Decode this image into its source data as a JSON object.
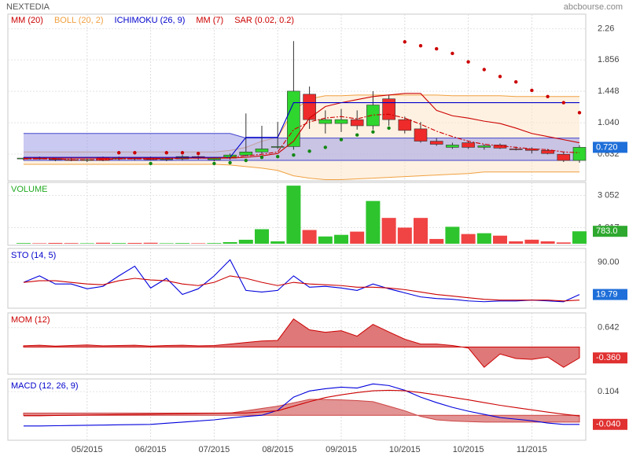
{
  "header": {
    "title": "NEXTEDIA",
    "site": "abcbourse.com"
  },
  "chart_data": [
    {
      "type": "candlestick",
      "categories": [
        null,
        null,
        null,
        null,
        null,
        null,
        null,
        null,
        null,
        null,
        null,
        null,
        null,
        null,
        null,
        null,
        null,
        null,
        null,
        null,
        null,
        null,
        null,
        null,
        null,
        null,
        null,
        null,
        null,
        null,
        null,
        null,
        null,
        null,
        null,
        null
      ],
      "xticks": [
        {
          "value": 4,
          "label": "05/2015"
        },
        {
          "value": 8,
          "label": "06/2015"
        },
        {
          "value": 12,
          "label": "07/2015"
        },
        {
          "value": 16,
          "label": "08/2015"
        },
        {
          "value": 20,
          "label": "09/2015"
        },
        {
          "value": 24,
          "label": "10/2015"
        },
        {
          "value": 28,
          "label": "10/2015"
        },
        {
          "value": 32,
          "label": "11/2015"
        }
      ],
      "open": [
        0.57,
        0.58,
        0.57,
        0.56,
        0.55,
        0.59,
        0.57,
        0.58,
        0.58,
        0.56,
        0.57,
        0.6,
        0.56,
        0.58,
        0.62,
        0.66,
        0.72,
        0.73,
        1.41,
        1.03,
        1.03,
        1.08,
        1.0,
        1.35,
        1.08,
        0.96,
        0.8,
        0.72,
        0.78,
        0.72,
        0.75,
        0.7,
        0.7,
        0.68,
        0.63,
        0.55
      ],
      "high": [
        0.59,
        0.6,
        0.58,
        0.58,
        0.57,
        0.6,
        0.6,
        0.59,
        0.6,
        0.58,
        0.62,
        0.61,
        0.59,
        0.64,
        1.16,
        1.0,
        1.05,
        2.1,
        1.51,
        1.2,
        1.22,
        1.2,
        1.45,
        1.4,
        1.12,
        1.05,
        0.84,
        0.78,
        0.8,
        0.76,
        0.77,
        0.73,
        0.72,
        0.7,
        0.66,
        0.75
      ],
      "low": [
        0.55,
        0.56,
        0.54,
        0.54,
        0.53,
        0.54,
        0.55,
        0.55,
        0.55,
        0.54,
        0.55,
        0.56,
        0.54,
        0.56,
        0.6,
        0.63,
        0.7,
        0.69,
        0.96,
        0.9,
        0.92,
        0.95,
        0.95,
        1.0,
        0.9,
        0.78,
        0.74,
        0.7,
        0.7,
        0.69,
        0.7,
        0.68,
        0.64,
        0.63,
        0.53,
        0.52
      ],
      "close": [
        0.58,
        0.57,
        0.56,
        0.55,
        0.56,
        0.55,
        0.58,
        0.57,
        0.56,
        0.57,
        0.6,
        0.58,
        0.58,
        0.62,
        0.66,
        0.7,
        0.73,
        1.45,
        1.08,
        1.08,
        1.08,
        1.0,
        1.27,
        1.08,
        0.94,
        0.8,
        0.76,
        0.75,
        0.72,
        0.74,
        0.71,
        0.69,
        0.68,
        0.64,
        0.55,
        0.72
      ],
      "up_color": "#2ed62e",
      "down_color": "#ee2a2a",
      "ylim": [
        0.285,
        2.45
      ],
      "yticks": [
        2.26,
        1.856,
        1.448,
        {
          "value": 1.04,
          "label": "1.040"
        },
        0.632
      ],
      "last": {
        "value": 0.72,
        "label": "0.720"
      },
      "last_color": "#1e6fd9",
      "series": [
        {
          "name": "MM (20)",
          "color": "#cc0000",
          "style": "line",
          "values": [
            0.58,
            0.58,
            0.58,
            0.58,
            0.58,
            0.58,
            0.58,
            0.58,
            0.58,
            0.58,
            0.58,
            0.58,
            0.58,
            0.58,
            0.59,
            0.61,
            0.64,
            0.8,
            1.1,
            1.25,
            1.3,
            1.34,
            1.38,
            1.4,
            1.42,
            1.42,
            1.2,
            1.13,
            1.1,
            1.06,
            1.03,
            0.97,
            0.9,
            0.86,
            0.82,
            0.78
          ]
        },
        {
          "name": "BOLL (20, 2)",
          "color": "#f0a040",
          "fill": "#fde6c8",
          "style": "band",
          "upper": [
            0.66,
            0.66,
            0.66,
            0.66,
            0.66,
            0.66,
            0.66,
            0.66,
            0.66,
            0.66,
            0.66,
            0.66,
            0.66,
            0.68,
            0.72,
            0.8,
            0.85,
            1.2,
            1.35,
            1.39,
            1.39,
            1.4,
            1.4,
            1.4,
            1.4,
            1.4,
            1.4,
            1.39,
            1.39,
            1.39,
            1.39,
            1.38,
            1.38,
            1.38,
            1.38,
            1.38
          ],
          "lower": [
            0.5,
            0.5,
            0.5,
            0.5,
            0.5,
            0.5,
            0.5,
            0.5,
            0.5,
            0.5,
            0.5,
            0.5,
            0.5,
            0.49,
            0.47,
            0.45,
            0.42,
            0.35,
            0.32,
            0.3,
            0.3,
            0.31,
            0.32,
            0.33,
            0.34,
            0.35,
            0.36,
            0.37,
            0.38,
            0.4,
            0.4,
            0.4,
            0.4,
            0.4,
            0.4,
            0.4
          ]
        },
        {
          "name": "ICHIMOKU (26, 9)",
          "color": "#0000cc",
          "style": "line",
          "values": [
            0.59,
            0.59,
            0.59,
            0.59,
            0.59,
            0.59,
            0.59,
            0.59,
            0.59,
            0.59,
            0.59,
            0.59,
            0.59,
            0.59,
            0.85,
            0.85,
            0.85,
            1.3,
            1.3,
            1.3,
            1.3,
            1.3,
            1.3,
            1.3,
            1.3,
            1.3,
            1.3,
            1.3,
            1.3,
            1.3,
            1.3,
            1.3,
            1.3,
            1.3,
            1.3,
            1.3
          ]
        },
        {
          "name": "MM (7)",
          "color": "#cc0000",
          "style": "dashed",
          "values": [
            0.57,
            0.57,
            0.57,
            0.56,
            0.56,
            0.56,
            0.57,
            0.57,
            0.57,
            0.57,
            0.58,
            0.58,
            0.58,
            0.59,
            0.61,
            0.63,
            0.66,
            0.95,
            1.05,
            1.1,
            1.12,
            1.09,
            1.14,
            1.15,
            1.1,
            1.02,
            0.93,
            0.86,
            0.8,
            0.76,
            0.74,
            0.72,
            0.7,
            0.69,
            0.66,
            0.65
          ]
        },
        {
          "name": "SAR (0.02, 0.2)",
          "color": "#cc0000",
          "color_below": "#118811",
          "style": "dots",
          "values": [
            null,
            null,
            null,
            null,
            null,
            null,
            0.65,
            0.65,
            0.51,
            0.65,
            0.65,
            0.64,
            0.51,
            0.52,
            0.55,
            0.59,
            0.6,
            0.62,
            0.67,
            0.72,
            0.82,
            0.88,
            0.92,
            0.97,
            2.09,
            2.04,
            2.0,
            1.94,
            1.83,
            1.73,
            1.64,
            1.57,
            1.46,
            1.38,
            1.3,
            1.17
          ]
        },
        {
          "color": "#4444cc",
          "fill": "#9c9ce8",
          "style": "band",
          "upper": [
            0.9,
            0.9,
            0.9,
            0.9,
            0.9,
            0.9,
            0.9,
            0.9,
            0.9,
            0.9,
            0.9,
            0.9,
            0.9,
            0.9,
            0.84,
            0.84,
            0.84,
            0.84,
            0.84,
            0.84,
            0.84,
            0.84,
            0.84,
            0.84,
            0.84,
            0.84,
            0.84,
            0.84,
            0.84,
            0.84,
            0.84,
            0.84,
            0.84,
            0.84,
            0.84,
            0.84
          ],
          "lower": [
            0.55,
            0.55,
            0.55,
            0.55,
            0.55,
            0.55,
            0.55,
            0.55,
            0.55,
            0.55,
            0.55,
            0.55,
            0.55,
            0.55,
            0.55,
            0.55,
            0.55,
            0.55,
            0.55,
            0.55,
            0.55,
            0.55,
            0.55,
            0.55,
            0.55,
            0.55,
            0.55,
            0.55,
            0.55,
            0.55,
            0.55,
            0.55,
            0.55,
            0.55,
            0.55,
            0.55
          ]
        }
      ]
    },
    {
      "type": "bar",
      "title": "VOLUME",
      "title_color": "#22aa22",
      "values": [
        40,
        30,
        50,
        40,
        30,
        60,
        40,
        50,
        60,
        30,
        40,
        30,
        40,
        100,
        250,
        916,
        150,
        3665,
        865,
        458,
        560,
        763,
        2697,
        1628,
        1017,
        1628,
        300,
        1068,
        610,
        662,
        509,
        150,
        254,
        150,
        80,
        783
      ],
      "up_color": "#2ec42e",
      "down_color": "#f04444",
      "ylim": [
        -100,
        3870
      ],
      "yticks": [
        {
          "value": 3052,
          "label": "3 052"
        },
        {
          "value": 1017,
          "label": "1 017"
        }
      ],
      "last": {
        "value": 783,
        "label": "783.0"
      },
      "last_color": "#2ea82e"
    },
    {
      "type": "line",
      "title": "STO (14, 5)",
      "title_color": "#0000cc",
      "ylim": [
        -10,
        120
      ],
      "yticks": [
        {
          "value": 90,
          "label": "90.00"
        }
      ],
      "last": 19.79,
      "last_color": "#1e6fd9",
      "series": [
        {
          "color": "#0000dd",
          "style": "line",
          "values": [
            46.2,
            60.3,
            42.7,
            42.7,
            32.2,
            37.5,
            60.3,
            81.4,
            33.9,
            55,
            19.9,
            32.2,
            60.3,
            95.4,
            28.7,
            25.1,
            28.7,
            60.3,
            35.7,
            37.5,
            33.9,
            28.7,
            42.7,
            32.2,
            23.4,
            14.6,
            11.1,
            9.3,
            5.8,
            4.1,
            5.8,
            5.8,
            7.6,
            5.8,
            4.1,
            19.79
          ]
        },
        {
          "color": "#cc0000",
          "style": "line",
          "values": [
            46.2,
            49.8,
            49.8,
            46.2,
            42.7,
            41,
            49.8,
            55,
            51.5,
            49.8,
            42.7,
            39.2,
            46.2,
            60.3,
            55,
            46.2,
            39.2,
            46.2,
            42.7,
            41,
            39.2,
            35.7,
            35.7,
            33.9,
            30.4,
            25.1,
            19.9,
            16.4,
            12.8,
            9.3,
            7.6,
            7.6,
            7.6,
            7.6,
            5.8,
            7.6
          ]
        }
      ]
    },
    {
      "type": "line",
      "title": "MOM (12)",
      "title_color": "#cc0000",
      "ylim": [
        -0.9,
        1.13
      ],
      "yticks": [
        0.642
      ],
      "last": {
        "value": -0.36,
        "label": "-0.360"
      },
      "last_color": "#e03030",
      "series": [
        {
          "color": "#cc0000",
          "fill": "#d96060",
          "style": "area",
          "values": [
            0.04,
            0.06,
            0.03,
            0.05,
            0.07,
            0.04,
            0.05,
            0.06,
            0.03,
            0.05,
            0.06,
            0.04,
            0.05,
            0.1,
            0.15,
            0.2,
            0.22,
            0.93,
            0.57,
            0.49,
            0.54,
            0.36,
            0.75,
            0.5,
            0.26,
            0.1,
            0.1,
            0.05,
            -0.03,
            -0.67,
            -0.23,
            -0.38,
            -0.41,
            -0.33,
            -0.67,
            -0.36
          ]
        }
      ]
    },
    {
      "type": "line",
      "title": "MACD (12, 26, 9)",
      "title_color": "#0000cc",
      "ylim": [
        -0.11,
        0.16
      ],
      "yticks": [
        0.104
      ],
      "last": {
        "value": -0.04,
        "label": "-0.040"
      },
      "last_color": "#e03030",
      "series": [
        {
          "color": "#cc4444",
          "fill": "#dd8080",
          "style": "area",
          "values": [
            0.01,
            0.01,
            0.01,
            0.01,
            0.01,
            0.01,
            0.01,
            0.01,
            0.01,
            0.01,
            0.01,
            0.01,
            0.01,
            0.01,
            0.02,
            0.03,
            0.04,
            0.055,
            0.07,
            0.07,
            0.068,
            0.065,
            0.06,
            0.04,
            0.02,
            -0.005,
            -0.02,
            -0.025,
            -0.028,
            -0.03,
            -0.03,
            -0.03,
            -0.03,
            -0.03,
            -0.03,
            -0.03
          ]
        },
        {
          "color": "#0000dd",
          "style": "line",
          "values": [
            -0.047,
            -0.047,
            -0.046,
            -0.045,
            -0.044,
            -0.043,
            -0.042,
            -0.041,
            -0.04,
            -0.035,
            -0.03,
            -0.025,
            -0.02,
            -0.012,
            -0.005,
            0,
            0.022,
            0.08,
            0.107,
            0.117,
            0.124,
            0.12,
            0.138,
            0.131,
            0.11,
            0.08,
            0.056,
            0.035,
            0.018,
            0.004,
            -0.01,
            -0.017,
            -0.024,
            -0.034,
            -0.04,
            -0.04
          ]
        },
        {
          "color": "#cc0000",
          "style": "line",
          "values": [
            -0.002,
            -0.002,
            -0.001,
            0,
            0.001,
            0.002,
            0.003,
            0.004,
            0.005,
            0.006,
            0.007,
            0.008,
            0.009,
            0.01,
            0.01,
            0.015,
            0.02,
            0.04,
            0.06,
            0.078,
            0.09,
            0.1,
            0.108,
            0.11,
            0.108,
            0.1,
            0.09,
            0.079,
            0.068,
            0.056,
            0.044,
            0.034,
            0.024,
            0.014,
            0.005,
            -0.003
          ]
        }
      ]
    }
  ]
}
